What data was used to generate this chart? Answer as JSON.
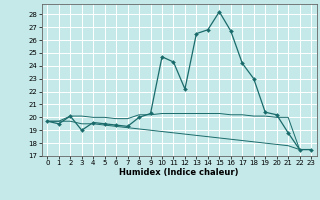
{
  "title": "",
  "xlabel": "Humidex (Indice chaleur)",
  "background_color": "#c5e8e8",
  "grid_color": "#ffffff",
  "line_color": "#1a6b6b",
  "xlim": [
    -0.5,
    23.5
  ],
  "ylim": [
    17,
    28.8
  ],
  "yticks": [
    17,
    18,
    19,
    20,
    21,
    22,
    23,
    24,
    25,
    26,
    27,
    28
  ],
  "xticks": [
    0,
    1,
    2,
    3,
    4,
    5,
    6,
    7,
    8,
    9,
    10,
    11,
    12,
    13,
    14,
    15,
    16,
    17,
    18,
    19,
    20,
    21,
    22,
    23
  ],
  "line1": [
    19.7,
    19.5,
    20.1,
    19.0,
    19.6,
    19.5,
    19.4,
    19.3,
    20.0,
    20.3,
    24.7,
    24.3,
    22.2,
    26.5,
    26.8,
    28.2,
    26.7,
    24.2,
    23.0,
    20.4,
    20.2,
    18.8,
    17.5,
    17.5
  ],
  "line2": [
    19.7,
    19.7,
    20.1,
    20.1,
    20.0,
    20.0,
    19.9,
    19.9,
    20.2,
    20.2,
    20.3,
    20.3,
    20.3,
    20.3,
    20.3,
    20.3,
    20.2,
    20.2,
    20.1,
    20.1,
    20.0,
    20.0,
    17.5,
    17.5
  ],
  "line3": [
    19.7,
    19.7,
    19.7,
    19.5,
    19.5,
    19.4,
    19.3,
    19.2,
    19.1,
    19.0,
    18.9,
    18.8,
    18.7,
    18.6,
    18.5,
    18.4,
    18.3,
    18.2,
    18.1,
    18.0,
    17.9,
    17.8,
    17.5,
    17.5
  ],
  "tick_fontsize": 5.0,
  "xlabel_fontsize": 6.0
}
